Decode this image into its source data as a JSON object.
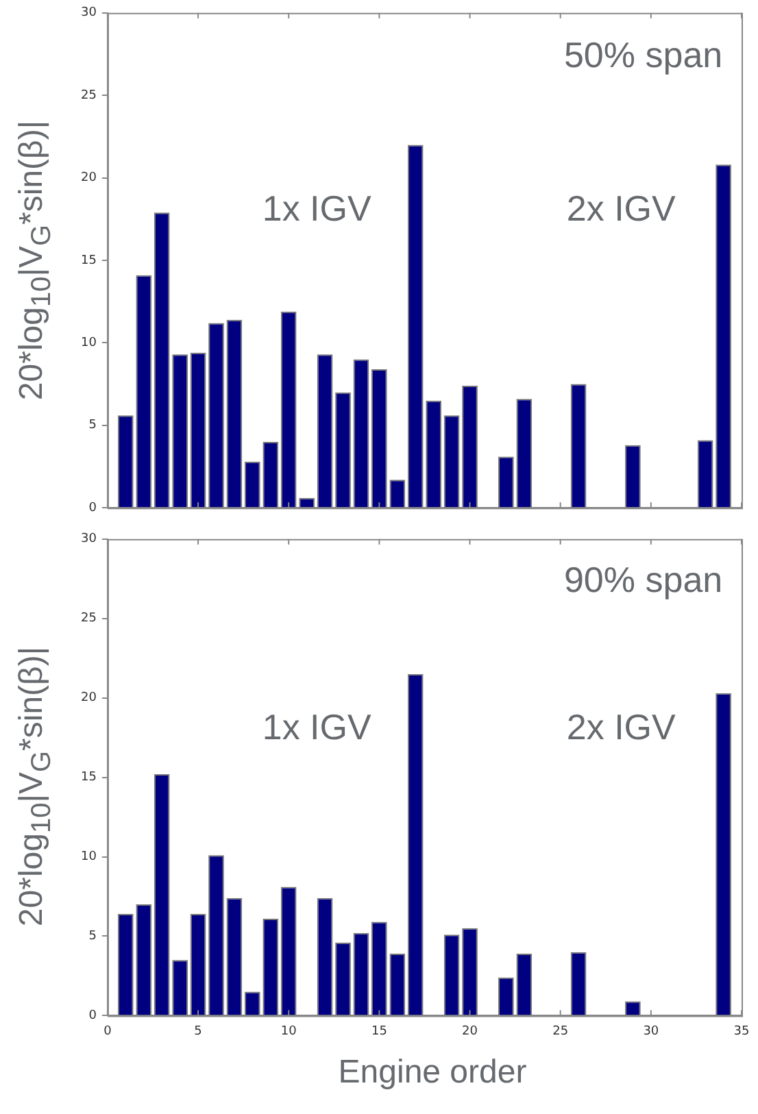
{
  "chart_data": [
    {
      "type": "bar",
      "ylabel": "20*log$_{10}$|V$_{G}$*sin(β)|",
      "annotations": [
        "50% span",
        "1x IGV",
        "2x IGV"
      ],
      "x": [
        1,
        2,
        3,
        4,
        5,
        6,
        7,
        8,
        9,
        10,
        11,
        12,
        13,
        14,
        15,
        16,
        17,
        18,
        19,
        20,
        22,
        23,
        26,
        29,
        33,
        34
      ],
      "series": [
        {
          "color": "#000080",
          "values": [
            5.6,
            14.1,
            17.9,
            9.3,
            9.4,
            11.2,
            11.4,
            2.8,
            4.0,
            11.9,
            0.6,
            9.3,
            7.0,
            9.0,
            8.4,
            1.7,
            22.0,
            6.5,
            5.6,
            7.4,
            3.1,
            6.6,
            7.5,
            3.8,
            4.1,
            20.8
          ]
        }
      ],
      "xlim": [
        0,
        35
      ],
      "xticks": [
        0,
        5,
        10,
        15,
        20,
        25,
        30,
        35
      ],
      "ylim": [
        0,
        30
      ],
      "yticks": [
        0,
        5,
        10,
        15,
        20,
        25,
        30
      ],
      "tick_labels": "y",
      "grid": false,
      "legend": false
    },
    {
      "type": "bar",
      "xlabel": "Engine order",
      "ylabel": "20*log$_{10}$|V$_{G}$*sin(β)|",
      "annotations": [
        "90% span",
        "1x IGV",
        "2x IGV"
      ],
      "x": [
        1,
        2,
        3,
        4,
        5,
        6,
        7,
        8,
        9,
        10,
        12,
        13,
        14,
        15,
        16,
        17,
        19,
        20,
        22,
        23,
        26,
        29,
        34
      ],
      "series": [
        {
          "color": "#000080",
          "values": [
            6.4,
            7.0,
            15.2,
            3.5,
            6.4,
            10.1,
            7.4,
            1.5,
            6.1,
            8.1,
            7.4,
            4.6,
            5.2,
            5.9,
            3.9,
            21.5,
            5.1,
            5.5,
            2.4,
            3.9,
            4.0,
            0.9,
            20.3
          ]
        }
      ],
      "xlim": [
        0,
        35
      ],
      "xticks": [
        0,
        5,
        10,
        15,
        20,
        25,
        30,
        35
      ],
      "ylim": [
        0,
        30
      ],
      "yticks": [
        0,
        5,
        10,
        15,
        20,
        25,
        30
      ],
      "grid": false,
      "legend": false
    }
  ]
}
